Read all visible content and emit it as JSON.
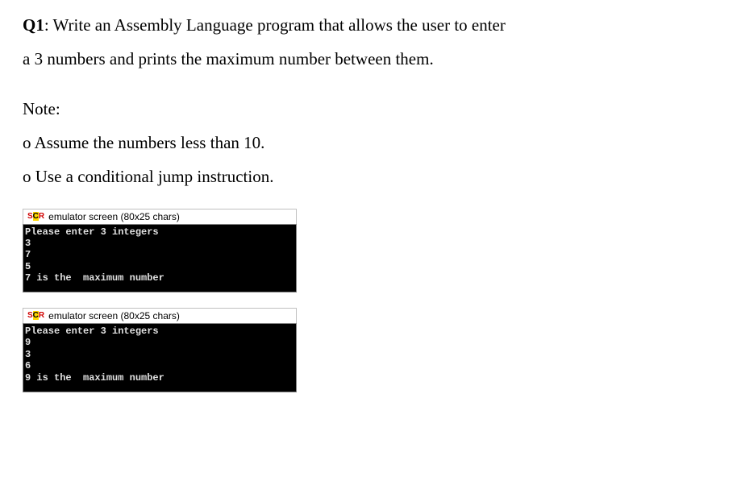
{
  "question": {
    "label": "Q1",
    "text_line1": ": Write an Assembly Language program that allows the user to enter",
    "text_line2": "a 3 numbers and prints the maximum number between them.",
    "note_label": "Note:",
    "bullet1": "o Assume the numbers less than 10.",
    "bullet2": "o Use a conditional jump instruction."
  },
  "emulator1": {
    "title": "emulator screen (80x25 chars)",
    "lines": [
      "Please enter 3 integers",
      "3",
      "7",
      "5",
      "7 is the  maximum number"
    ],
    "bg_color": "#000000",
    "text_color": "#e0e0e0",
    "font_family": "Courier New"
  },
  "emulator2": {
    "title": "emulator screen (80x25 chars)",
    "lines": [
      "Please enter 3 integers",
      "9",
      "3",
      "6",
      "9 is the  maximum number"
    ],
    "bg_color": "#000000",
    "text_color": "#e0e0e0",
    "font_family": "Courier New"
  },
  "colors": {
    "page_bg": "#ffffff",
    "text": "#000000",
    "console_bg": "#000000",
    "console_text": "#e0e0e0",
    "icon_red": "#d00000",
    "icon_yellow": "#ffd700"
  }
}
